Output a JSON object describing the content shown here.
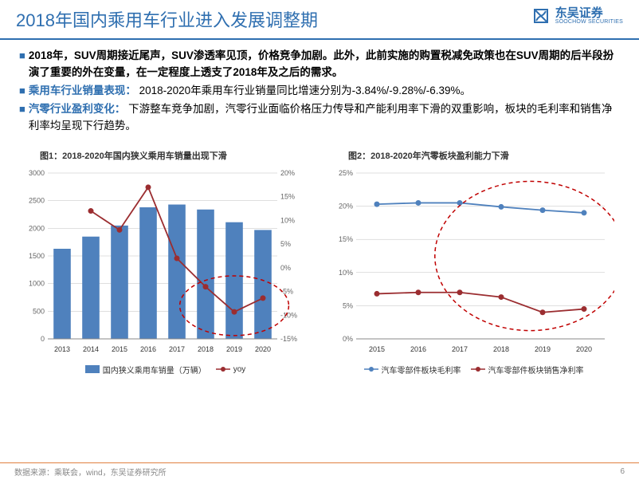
{
  "header": {
    "title": "2018年国内乘用车行业进入发展调整期",
    "logo_cn": "东吴证券",
    "logo_en": "SOOCHOW SECURITIES"
  },
  "bullets": {
    "b1_label": "",
    "b1_text": "2018年，SUV周期接近尾声，SUV渗透率见顶，价格竞争加剧。此外，此前实施的购置税减免政策也在SUV周期的后半段扮演了重要的外在变量，在一定程度上透支了2018年及之后的需求。",
    "b2_label": "乘用车行业销量表现：",
    "b2_text": "2018-2020年乘用车行业销量同比增速分别为-3.84%/-9.28%/-6.39%。",
    "b3_label": "汽零行业盈利变化：",
    "b3_text": "下游整车竞争加剧，汽零行业面临价格压力传导和产能利用率下滑的双重影响，板块的毛利率和销售净利率均呈现下行趋势。"
  },
  "chart1": {
    "title": "图1：2018-2020年国内狭义乘用车销量出现下滑",
    "type": "bar+line",
    "categories": [
      "2013",
      "2014",
      "2015",
      "2016",
      "2017",
      "2018",
      "2019",
      "2020"
    ],
    "bars": [
      1630,
      1850,
      2050,
      2380,
      2430,
      2340,
      2110,
      1970
    ],
    "line_yoy_pct": [
      null,
      12,
      8,
      17,
      2,
      -4,
      -9.3,
      -6.4
    ],
    "left_ylim": [
      0,
      3000
    ],
    "left_ytick_step": 500,
    "right_ylim": [
      -15,
      20
    ],
    "right_ytick_step": 5,
    "bar_color": "#4f81bd",
    "line_color": "#9b2d30",
    "marker_color": "#9b2d30",
    "grid_color": "#bfbfbf",
    "axis_fontsize": 9,
    "ellipse_color": "#c00000",
    "legend_bar": "国内狭义乘用车销量（万辆）",
    "legend_line": "yoy"
  },
  "chart2": {
    "title": "图2：2018-2020年汽零板块盈利能力下滑",
    "type": "line",
    "categories": [
      "2015",
      "2016",
      "2017",
      "2018",
      "2019",
      "2020"
    ],
    "series_gross": [
      20.3,
      20.5,
      20.5,
      19.9,
      19.4,
      19.0
    ],
    "series_net": [
      6.8,
      7.0,
      7.0,
      6.3,
      4.0,
      4.5
    ],
    "ylim": [
      0,
      25
    ],
    "ytick_step": 5,
    "gross_color": "#4f81bd",
    "net_color": "#9b2d30",
    "grid_color": "#bfbfbf",
    "axis_fontsize": 9,
    "ellipse_color": "#c00000",
    "legend_gross": "汽车零部件板块毛利率",
    "legend_net": "汽车零部件板块销售净利率"
  },
  "footer": {
    "source": "数据来源：乘联会，wind，东吴证券研究所",
    "page": "6"
  },
  "colors": {
    "brand": "#2f6fb0",
    "footer_line": "#e08040"
  }
}
